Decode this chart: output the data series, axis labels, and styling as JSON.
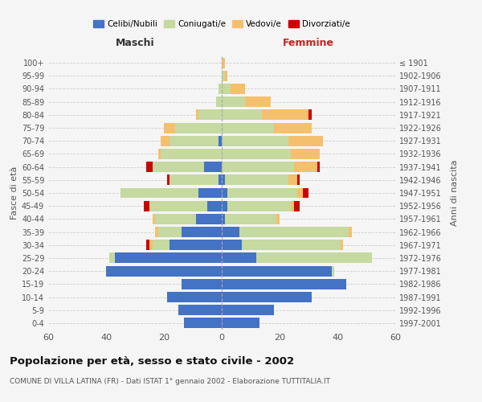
{
  "age_groups": [
    "0-4",
    "5-9",
    "10-14",
    "15-19",
    "20-24",
    "25-29",
    "30-34",
    "35-39",
    "40-44",
    "45-49",
    "50-54",
    "55-59",
    "60-64",
    "65-69",
    "70-74",
    "75-79",
    "80-84",
    "85-89",
    "90-94",
    "95-99",
    "100+"
  ],
  "birth_years": [
    "1997-2001",
    "1992-1996",
    "1987-1991",
    "1982-1986",
    "1977-1981",
    "1972-1976",
    "1967-1971",
    "1962-1966",
    "1957-1961",
    "1952-1956",
    "1947-1951",
    "1942-1946",
    "1937-1941",
    "1932-1936",
    "1927-1931",
    "1922-1926",
    "1917-1921",
    "1912-1916",
    "1907-1911",
    "1902-1906",
    "≤ 1901"
  ],
  "males": {
    "celibi": [
      13,
      15,
      19,
      14,
      40,
      37,
      18,
      14,
      9,
      5,
      8,
      1,
      6,
      0,
      1,
      0,
      0,
      0,
      0,
      0,
      0
    ],
    "coniugati": [
      0,
      0,
      0,
      0,
      0,
      2,
      6,
      8,
      14,
      20,
      27,
      17,
      18,
      21,
      17,
      16,
      8,
      2,
      1,
      0,
      0
    ],
    "vedovi": [
      0,
      0,
      0,
      0,
      0,
      0,
      1,
      1,
      1,
      0,
      0,
      0,
      0,
      1,
      3,
      4,
      1,
      0,
      0,
      0,
      0
    ],
    "divorziati": [
      0,
      0,
      0,
      0,
      0,
      0,
      1,
      0,
      0,
      2,
      0,
      1,
      2,
      0,
      0,
      0,
      0,
      0,
      0,
      0,
      0
    ]
  },
  "females": {
    "nubili": [
      13,
      18,
      31,
      43,
      38,
      12,
      7,
      6,
      1,
      2,
      2,
      1,
      0,
      0,
      0,
      0,
      0,
      0,
      0,
      0,
      0
    ],
    "coniugate": [
      0,
      0,
      0,
      0,
      1,
      40,
      34,
      38,
      18,
      22,
      24,
      22,
      25,
      24,
      23,
      18,
      14,
      8,
      3,
      1,
      0
    ],
    "vedove": [
      0,
      0,
      0,
      0,
      0,
      0,
      1,
      1,
      1,
      1,
      2,
      3,
      8,
      10,
      12,
      13,
      16,
      9,
      5,
      1,
      1
    ],
    "divorziate": [
      0,
      0,
      0,
      0,
      0,
      0,
      0,
      0,
      0,
      2,
      2,
      1,
      1,
      0,
      0,
      0,
      1,
      0,
      0,
      0,
      0
    ]
  },
  "colors": {
    "celibi": "#4472c4",
    "coniugati": "#c5d9a0",
    "vedovi": "#f5c06d",
    "divorziati": "#cc0000"
  },
  "title": "Popolazione per età, sesso e stato civile - 2002",
  "subtitle": "COMUNE DI VILLA LATINA (FR) - Dati ISTAT 1° gennaio 2002 - Elaborazione TUTTITALIA.IT",
  "xlabel_left": "Maschi",
  "xlabel_right": "Femmine",
  "ylabel_left": "Fasce di età",
  "ylabel_right": "Anni di nascita",
  "xlim": 60,
  "legend_labels": [
    "Celibi/Nubili",
    "Coniugati/e",
    "Vedovi/e",
    "Divorziati/e"
  ],
  "bg_color": "#f5f5f5",
  "grid_color": "#cccccc"
}
